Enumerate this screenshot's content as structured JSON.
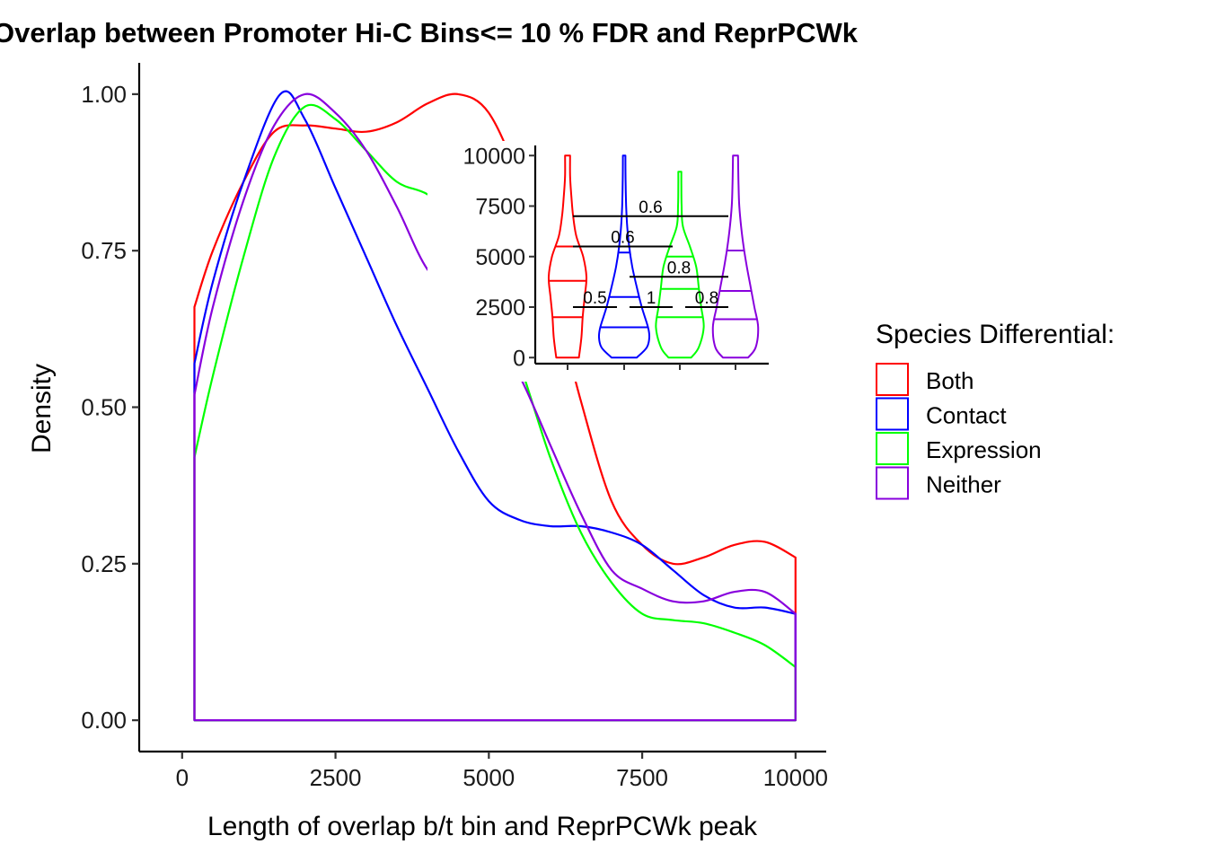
{
  "chart_data": [
    {
      "type": "density",
      "title": "Overlap between Promoter Hi-C Bins<= 10 % FDR and ReprPCWk",
      "xlabel": "Length of overlap b/t bin and ReprPCWk peak",
      "ylabel": "Density",
      "xlim": [
        -700,
        10500
      ],
      "ylim": [
        -0.05,
        1.05
      ],
      "x_ticks": [
        0,
        2500,
        5000,
        7500,
        10000
      ],
      "x_tick_labels": [
        "0",
        "2500",
        "5000",
        "7500",
        "10000"
      ],
      "y_ticks": [
        0,
        0.25,
        0.5,
        0.75,
        1.0
      ],
      "y_tick_labels": [
        "0.00",
        "0.25",
        "0.50",
        "0.75",
        "1.00"
      ],
      "grid": false,
      "legend": {
        "title": "Species Differential:",
        "placement": "right",
        "entries": [
          "Both",
          "Contact",
          "Expression",
          "Neither"
        ]
      },
      "series": [
        {
          "name": "Both",
          "color": "#FF0000",
          "points": [
            [
              200,
              0.66
            ],
            [
              500,
              0.75
            ],
            [
              1000,
              0.86
            ],
            [
              1500,
              0.94
            ],
            [
              2000,
              0.95
            ],
            [
              2500,
              0.945
            ],
            [
              3000,
              0.94
            ],
            [
              3500,
              0.955
            ],
            [
              4000,
              0.985
            ],
            [
              4500,
              1.0
            ],
            [
              5000,
              0.97
            ],
            [
              5500,
              0.86
            ],
            [
              6000,
              0.7
            ],
            [
              6500,
              0.51
            ],
            [
              7000,
              0.35
            ],
            [
              7500,
              0.28
            ],
            [
              8000,
              0.25
            ],
            [
              8500,
              0.26
            ],
            [
              9000,
              0.28
            ],
            [
              9500,
              0.285
            ],
            [
              10000,
              0.26
            ]
          ]
        },
        {
          "name": "Contact",
          "color": "#0000FF",
          "points": [
            [
              200,
              0.57
            ],
            [
              500,
              0.7
            ],
            [
              1000,
              0.86
            ],
            [
              1600,
              1.0
            ],
            [
              2000,
              0.96
            ],
            [
              2500,
              0.85
            ],
            [
              3000,
              0.74
            ],
            [
              3500,
              0.63
            ],
            [
              4000,
              0.53
            ],
            [
              4500,
              0.43
            ],
            [
              5000,
              0.35
            ],
            [
              5500,
              0.32
            ],
            [
              6000,
              0.31
            ],
            [
              6500,
              0.31
            ],
            [
              7000,
              0.3
            ],
            [
              7500,
              0.28
            ],
            [
              8000,
              0.24
            ],
            [
              8500,
              0.2
            ],
            [
              9000,
              0.18
            ],
            [
              9500,
              0.18
            ],
            [
              10000,
              0.17
            ]
          ]
        },
        {
          "name": "Expression",
          "color": "#00FF00",
          "points": [
            [
              200,
              0.42
            ],
            [
              500,
              0.55
            ],
            [
              1000,
              0.74
            ],
            [
              1500,
              0.9
            ],
            [
              2000,
              0.98
            ],
            [
              2500,
              0.96
            ],
            [
              3000,
              0.91
            ],
            [
              3500,
              0.86
            ],
            [
              4000,
              0.84
            ],
            [
              4500,
              0.8
            ],
            [
              5000,
              0.7
            ],
            [
              5500,
              0.57
            ],
            [
              6000,
              0.42
            ],
            [
              6500,
              0.3
            ],
            [
              7000,
              0.22
            ],
            [
              7500,
              0.17
            ],
            [
              8000,
              0.16
            ],
            [
              8500,
              0.155
            ],
            [
              9000,
              0.14
            ],
            [
              9500,
              0.12
            ],
            [
              10000,
              0.085
            ]
          ]
        },
        {
          "name": "Neither",
          "color": "#8800DD",
          "points": [
            [
              200,
              0.52
            ],
            [
              500,
              0.66
            ],
            [
              1000,
              0.83
            ],
            [
              1500,
              0.95
            ],
            [
              2000,
              1.0
            ],
            [
              2500,
              0.97
            ],
            [
              3000,
              0.91
            ],
            [
              3500,
              0.82
            ],
            [
              4000,
              0.72
            ],
            [
              4500,
              0.68
            ],
            [
              5000,
              0.63
            ],
            [
              5500,
              0.55
            ],
            [
              6000,
              0.44
            ],
            [
              6500,
              0.33
            ],
            [
              7000,
              0.24
            ],
            [
              7500,
              0.21
            ],
            [
              8000,
              0.19
            ],
            [
              8500,
              0.19
            ],
            [
              9000,
              0.205
            ],
            [
              9500,
              0.205
            ],
            [
              10000,
              0.17
            ]
          ]
        }
      ]
    },
    {
      "type": "violin",
      "title": "",
      "ylim": [
        -300,
        10500
      ],
      "y_ticks": [
        0,
        2500,
        5000,
        7500,
        10000
      ],
      "y_tick_labels": [
        "0",
        "2500",
        "5000",
        "7500",
        "10000"
      ],
      "grid": false,
      "categories": [
        "Both",
        "Contact",
        "Expression",
        "Neither"
      ],
      "violins": [
        {
          "name": "Both",
          "color": "#FF0000",
          "min": 0,
          "max": 10000,
          "quantiles": [
            2000,
            3800,
            5500
          ],
          "profile": [
            [
              0,
              0.45
            ],
            [
              1000,
              0.55
            ],
            [
              2000,
              0.6
            ],
            [
              3000,
              0.68
            ],
            [
              4000,
              0.75
            ],
            [
              5000,
              0.62
            ],
            [
              6000,
              0.35
            ],
            [
              7000,
              0.22
            ],
            [
              8000,
              0.15
            ],
            [
              9000,
              0.1
            ],
            [
              10000,
              0.1
            ]
          ]
        },
        {
          "name": "Contact",
          "color": "#0000FF",
          "min": 0,
          "max": 10000,
          "quantiles": [
            1500,
            3000,
            5200
          ],
          "profile": [
            [
              0,
              0.5
            ],
            [
              500,
              0.9
            ],
            [
              1000,
              1.0
            ],
            [
              1500,
              0.95
            ],
            [
              2500,
              0.7
            ],
            [
              3500,
              0.5
            ],
            [
              4500,
              0.32
            ],
            [
              5500,
              0.2
            ],
            [
              6500,
              0.12
            ],
            [
              7500,
              0.08
            ],
            [
              8500,
              0.06
            ],
            [
              10000,
              0.05
            ]
          ]
        },
        {
          "name": "Expression",
          "color": "#00FF00",
          "min": 0,
          "max": 9200,
          "quantiles": [
            2000,
            3400,
            5000
          ],
          "profile": [
            [
              0,
              0.45
            ],
            [
              500,
              0.75
            ],
            [
              1500,
              0.95
            ],
            [
              2500,
              0.85
            ],
            [
              3500,
              0.75
            ],
            [
              4500,
              0.65
            ],
            [
              5500,
              0.4
            ],
            [
              6500,
              0.12
            ],
            [
              7500,
              0.07
            ],
            [
              8500,
              0.06
            ],
            [
              9200,
              0.06
            ]
          ]
        },
        {
          "name": "Neither",
          "color": "#8800DD",
          "min": 0,
          "max": 10000,
          "quantiles": [
            1900,
            3300,
            5300
          ],
          "profile": [
            [
              0,
              0.5
            ],
            [
              500,
              0.8
            ],
            [
              1500,
              0.9
            ],
            [
              2500,
              0.75
            ],
            [
              3500,
              0.6
            ],
            [
              4500,
              0.45
            ],
            [
              5500,
              0.32
            ],
            [
              6500,
              0.22
            ],
            [
              7500,
              0.15
            ],
            [
              8500,
              0.12
            ],
            [
              10000,
              0.1
            ]
          ]
        }
      ],
      "comparisons": [
        {
          "groups": [
            "Both",
            "Expression"
          ],
          "y": 7000,
          "label": "0.6",
          "side": "right"
        },
        {
          "groups": [
            "Both",
            "Contact"
          ],
          "y": 5500,
          "label": "0.6",
          "side": "center"
        },
        {
          "groups": [
            "Contact",
            "Neither"
          ],
          "y": 4000,
          "label": "0.8",
          "side": "center"
        },
        {
          "groups": [
            "Both",
            "Contact"
          ],
          "y": 2500,
          "label": "0.5",
          "side": "center"
        },
        {
          "groups": [
            "Contact",
            "Expression"
          ],
          "y": 2500,
          "label": "1",
          "side": "center"
        },
        {
          "groups": [
            "Expression",
            "Neither"
          ],
          "y": 2500,
          "label": "0.8",
          "side": "center"
        }
      ]
    }
  ]
}
